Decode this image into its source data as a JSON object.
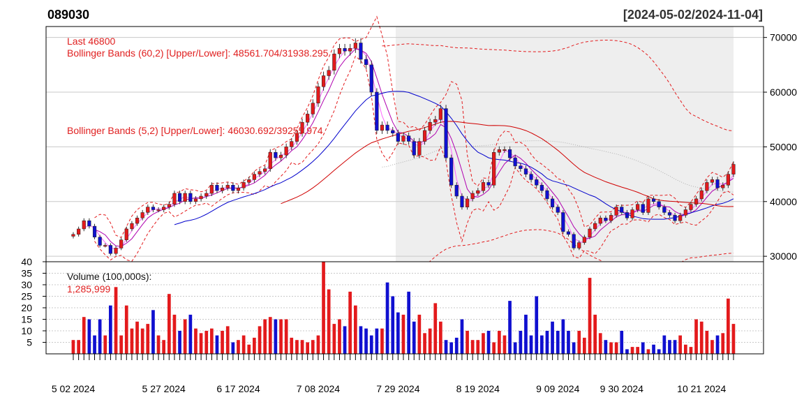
{
  "header": {
    "symbol": "089030",
    "date_range": "[2024-05-02/2024-11-04]"
  },
  "price_panel": {
    "last_label": "Last 46800",
    "bb60_label": "Bollinger Bands (60,2) [Upper/Lower]: 48561.704/31938.295",
    "bb5_label": "Bollinger Bands (5,2) [Upper/Lower]: 46030.692/39255.974"
  },
  "volume_panel": {
    "label": "Volume (100,000s):",
    "value": "1,285,999"
  },
  "colors": {
    "up": "#e31a1c",
    "down": "#1010d0",
    "bollinger": "#e31a1c",
    "sma_short": "#b000b0",
    "sma_mid": "#0000cc",
    "sma_long": "#d00000",
    "shade": "#eeeeee"
  },
  "chart_data": {
    "type": "candlestick",
    "title": "089030",
    "subtitle": "[2024-05-02/2024-11-04]",
    "price_axis": {
      "ticks": [
        30000,
        40000,
        50000,
        60000,
        70000
      ],
      "ylim": [
        29000,
        72000
      ]
    },
    "volume_axis": {
      "ticks": [
        5,
        10,
        15,
        20,
        25,
        30,
        35,
        40
      ],
      "ylim": [
        0,
        40
      ],
      "unit": "100,000s"
    },
    "x_tick_labels": [
      {
        "index": 0,
        "label": "5 02 2024"
      },
      {
        "index": 17,
        "label": "5 27 2024"
      },
      {
        "index": 31,
        "label": "6 17 2024"
      },
      {
        "index": 46,
        "label": "7 08 2024"
      },
      {
        "index": 61,
        "label": "7 29 2024"
      },
      {
        "index": 76,
        "label": "8 19 2024"
      },
      {
        "index": 91,
        "label": "9 09 2024"
      },
      {
        "index": 103,
        "label": "9 30 2024"
      },
      {
        "index": 118,
        "label": "10 21 2024"
      }
    ],
    "close": [
      34000,
      35000,
      36500,
      35500,
      33500,
      32000,
      32000,
      30500,
      31500,
      33000,
      35000,
      36000,
      37000,
      38000,
      39000,
      38500,
      38500,
      39000,
      39500,
      41500,
      40000,
      41500,
      40000,
      40500,
      41000,
      41500,
      43000,
      42000,
      42500,
      43000,
      42000,
      42500,
      43500,
      44000,
      45000,
      45500,
      46000,
      49000,
      48000,
      48500,
      50000,
      51000,
      52500,
      54500,
      56000,
      58000,
      61000,
      63000,
      64000,
      67000,
      68000,
      67500,
      68000,
      69000,
      66000,
      65000,
      60000,
      53000,
      54000,
      53000,
      52500,
      51000,
      52000,
      51000,
      48500,
      51000,
      53000,
      54500,
      55000,
      57000,
      48000,
      43000,
      41000,
      39000,
      40500,
      41500,
      42000,
      43500,
      43000,
      49000,
      49500,
      49500,
      48000,
      46500,
      46000,
      45000,
      44000,
      43000,
      42000,
      40500,
      39000,
      38000,
      34500,
      34000,
      31500,
      32500,
      33500,
      35000,
      36000,
      37000,
      36500,
      37500,
      39000,
      38000,
      37000,
      38500,
      39500,
      38000,
      40500,
      40000,
      39000,
      38000,
      37500,
      36500,
      37500,
      38500,
      39500,
      40500,
      42000,
      43500,
      44000,
      42500,
      43000,
      45000,
      46800
    ],
    "volume": [
      6,
      6,
      16,
      15,
      8,
      15,
      8,
      21,
      29,
      8,
      21,
      11,
      14,
      11,
      13,
      19,
      8,
      6,
      26,
      17,
      10,
      15,
      17,
      11,
      9,
      10,
      11,
      8,
      10,
      12,
      5,
      6,
      8,
      4,
      7,
      12,
      15,
      16,
      15,
      15,
      15,
      7,
      6,
      6,
      5,
      6,
      8,
      40,
      28,
      13,
      15,
      12,
      27,
      21,
      12,
      11,
      8,
      11,
      11,
      31,
      25,
      18,
      17,
      27,
      14,
      17,
      9,
      11,
      22,
      14,
      6,
      5,
      7,
      15,
      10,
      6,
      6,
      9,
      10,
      5,
      10,
      8,
      23,
      5,
      10,
      17,
      8,
      25,
      8,
      10,
      14,
      10,
      15,
      10,
      5,
      10,
      7,
      33,
      17,
      9,
      6,
      5,
      5,
      10,
      2,
      3,
      3,
      5,
      2,
      4,
      2,
      8,
      6,
      6,
      8,
      4,
      3,
      15,
      14,
      10,
      6,
      8,
      9,
      24,
      13
    ]
  }
}
